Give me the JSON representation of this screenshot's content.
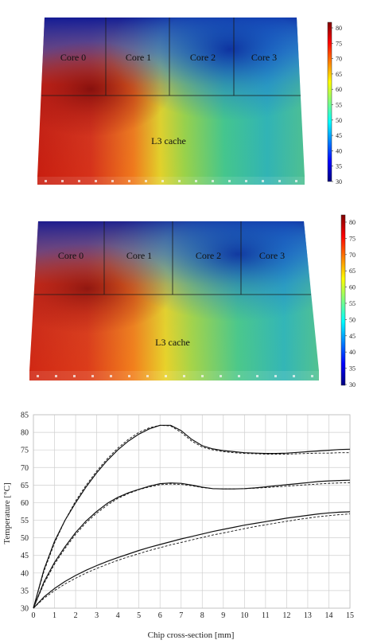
{
  "thermal_maps": [
    {
      "regions": {
        "core0": "Core 0",
        "core1": "Core 1",
        "core2": "Core 2",
        "core3": "Core 3",
        "cache": "L3 cache"
      },
      "colorbar": {
        "ticks": [
          "80",
          "75",
          "70",
          "65",
          "60",
          "55",
          "50",
          "45",
          "40",
          "35",
          "30"
        ],
        "range": [
          30,
          82
        ],
        "colormap": "jet"
      }
    },
    {
      "regions": {
        "core0": "Core 0",
        "core1": "Core 1",
        "core2": "Core 2",
        "core3": "Core 3",
        "cache": "L3 cache"
      },
      "colorbar": {
        "ticks": [
          "80",
          "75",
          "70",
          "65",
          "60",
          "55",
          "50",
          "45",
          "40",
          "35",
          "30"
        ],
        "range": [
          30,
          82
        ],
        "colormap": "jet"
      }
    }
  ],
  "chart_data": {
    "type": "line",
    "xlabel": "Chip cross-section [mm]",
    "ylabel": "Temperature [°C]",
    "xlim": [
      0,
      15
    ],
    "ylim": [
      30,
      85
    ],
    "xticks": [
      "0",
      "1",
      "2",
      "3",
      "4",
      "5",
      "6",
      "7",
      "8",
      "9",
      "10",
      "11",
      "12",
      "13",
      "14",
      "15"
    ],
    "yticks": [
      "30",
      "35",
      "40",
      "45",
      "50",
      "55",
      "60",
      "65",
      "70",
      "75",
      "80",
      "85"
    ],
    "grid": true,
    "series": [
      {
        "style": "solid",
        "x": [
          0,
          0.5,
          1,
          1.5,
          2,
          2.5,
          3,
          3.5,
          4,
          4.5,
          5,
          5.5,
          6,
          6.5,
          7,
          7.5,
          8,
          8.5,
          9,
          9.5,
          10,
          10.5,
          11,
          11.5,
          12,
          12.5,
          13,
          13.5,
          14,
          14.5,
          15
        ],
        "y": [
          30,
          41,
          49,
          55,
          60,
          64.5,
          68.5,
          72,
          75,
          77.5,
          79.5,
          81,
          82,
          82,
          80.5,
          78,
          76.2,
          75.3,
          74.8,
          74.5,
          74.2,
          74.1,
          74,
          74,
          74.1,
          74.3,
          74.5,
          74.7,
          74.9,
          75.1,
          75.2
        ]
      },
      {
        "style": "dashed",
        "x": [
          0,
          0.5,
          1,
          1.5,
          2,
          2.5,
          3,
          3.5,
          4,
          4.5,
          5,
          5.5,
          6,
          6.5,
          7,
          7.5,
          8,
          8.5,
          9,
          9.5,
          10,
          10.5,
          11,
          11.5,
          12,
          12.5,
          13,
          13.5,
          14,
          14.5,
          15
        ],
        "y": [
          30,
          40.5,
          48.5,
          55,
          60.5,
          65,
          69,
          72.5,
          75.5,
          78,
          80,
          81.3,
          82,
          81.8,
          80,
          77.5,
          75.8,
          75,
          74.5,
          74.2,
          74,
          73.9,
          73.8,
          73.8,
          73.8,
          73.9,
          74,
          74.1,
          74.1,
          74.2,
          74.2
        ]
      },
      {
        "style": "solid",
        "x": [
          0,
          0.5,
          1,
          1.5,
          2,
          2.5,
          3,
          3.5,
          4,
          4.5,
          5,
          5.5,
          6,
          6.5,
          7,
          7.5,
          8,
          8.5,
          9,
          9.5,
          10,
          10.5,
          11,
          11.5,
          12,
          12.5,
          13,
          13.5,
          14,
          14.5,
          15
        ],
        "y": [
          30,
          37.5,
          43,
          47.5,
          51.5,
          54.8,
          57.5,
          59.8,
          61.5,
          62.8,
          63.8,
          64.7,
          65.4,
          65.6,
          65.5,
          65,
          64.4,
          64,
          63.9,
          63.9,
          64,
          64.2,
          64.5,
          64.8,
          65.1,
          65.4,
          65.7,
          66,
          66.2,
          66.3,
          66.4
        ]
      },
      {
        "style": "dashed",
        "x": [
          0,
          0.5,
          1,
          1.5,
          2,
          2.5,
          3,
          3.5,
          4,
          4.5,
          5,
          5.5,
          6,
          6.5,
          7,
          7.5,
          8,
          8.5,
          9,
          9.5,
          10,
          10.5,
          11,
          11.5,
          12,
          12.5,
          13,
          13.5,
          14,
          14.5,
          15
        ],
        "y": [
          30,
          37,
          42.5,
          47,
          51,
          54.3,
          57,
          59.3,
          61.2,
          62.6,
          63.7,
          64.5,
          65.1,
          65.3,
          65.2,
          64.8,
          64.3,
          64,
          63.9,
          63.9,
          64,
          64.1,
          64.3,
          64.5,
          64.7,
          64.9,
          65.1,
          65.3,
          65.5,
          65.6,
          65.7
        ]
      },
      {
        "style": "solid",
        "x": [
          0,
          0.5,
          1,
          1.5,
          2,
          2.5,
          3,
          3.5,
          4,
          4.5,
          5,
          5.5,
          6,
          6.5,
          7,
          7.5,
          8,
          8.5,
          9,
          9.5,
          10,
          10.5,
          11,
          11.5,
          12,
          12.5,
          13,
          13.5,
          14,
          14.5,
          15
        ],
        "y": [
          30,
          33.2,
          35.6,
          37.6,
          39.3,
          40.8,
          42.1,
          43.3,
          44.4,
          45.4,
          46.4,
          47.3,
          48.1,
          48.9,
          49.7,
          50.4,
          51.1,
          51.8,
          52.4,
          53,
          53.6,
          54.1,
          54.6,
          55.1,
          55.6,
          56,
          56.4,
          56.8,
          57.1,
          57.3,
          57.4
        ]
      },
      {
        "style": "dashed",
        "x": [
          0,
          0.5,
          1,
          1.5,
          2,
          2.5,
          3,
          3.5,
          4,
          4.5,
          5,
          5.5,
          6,
          6.5,
          7,
          7.5,
          8,
          8.5,
          9,
          9.5,
          10,
          10.5,
          11,
          11.5,
          12,
          12.5,
          13,
          13.5,
          14,
          14.5,
          15
        ],
        "y": [
          30,
          32.8,
          35,
          36.9,
          38.5,
          40,
          41.3,
          42.5,
          43.6,
          44.6,
          45.5,
          46.4,
          47.2,
          48,
          48.7,
          49.4,
          50.1,
          50.8,
          51.4,
          52,
          52.6,
          53.2,
          53.7,
          54.2,
          54.7,
          55.2,
          55.6,
          56,
          56.3,
          56.6,
          56.8
        ]
      }
    ]
  }
}
